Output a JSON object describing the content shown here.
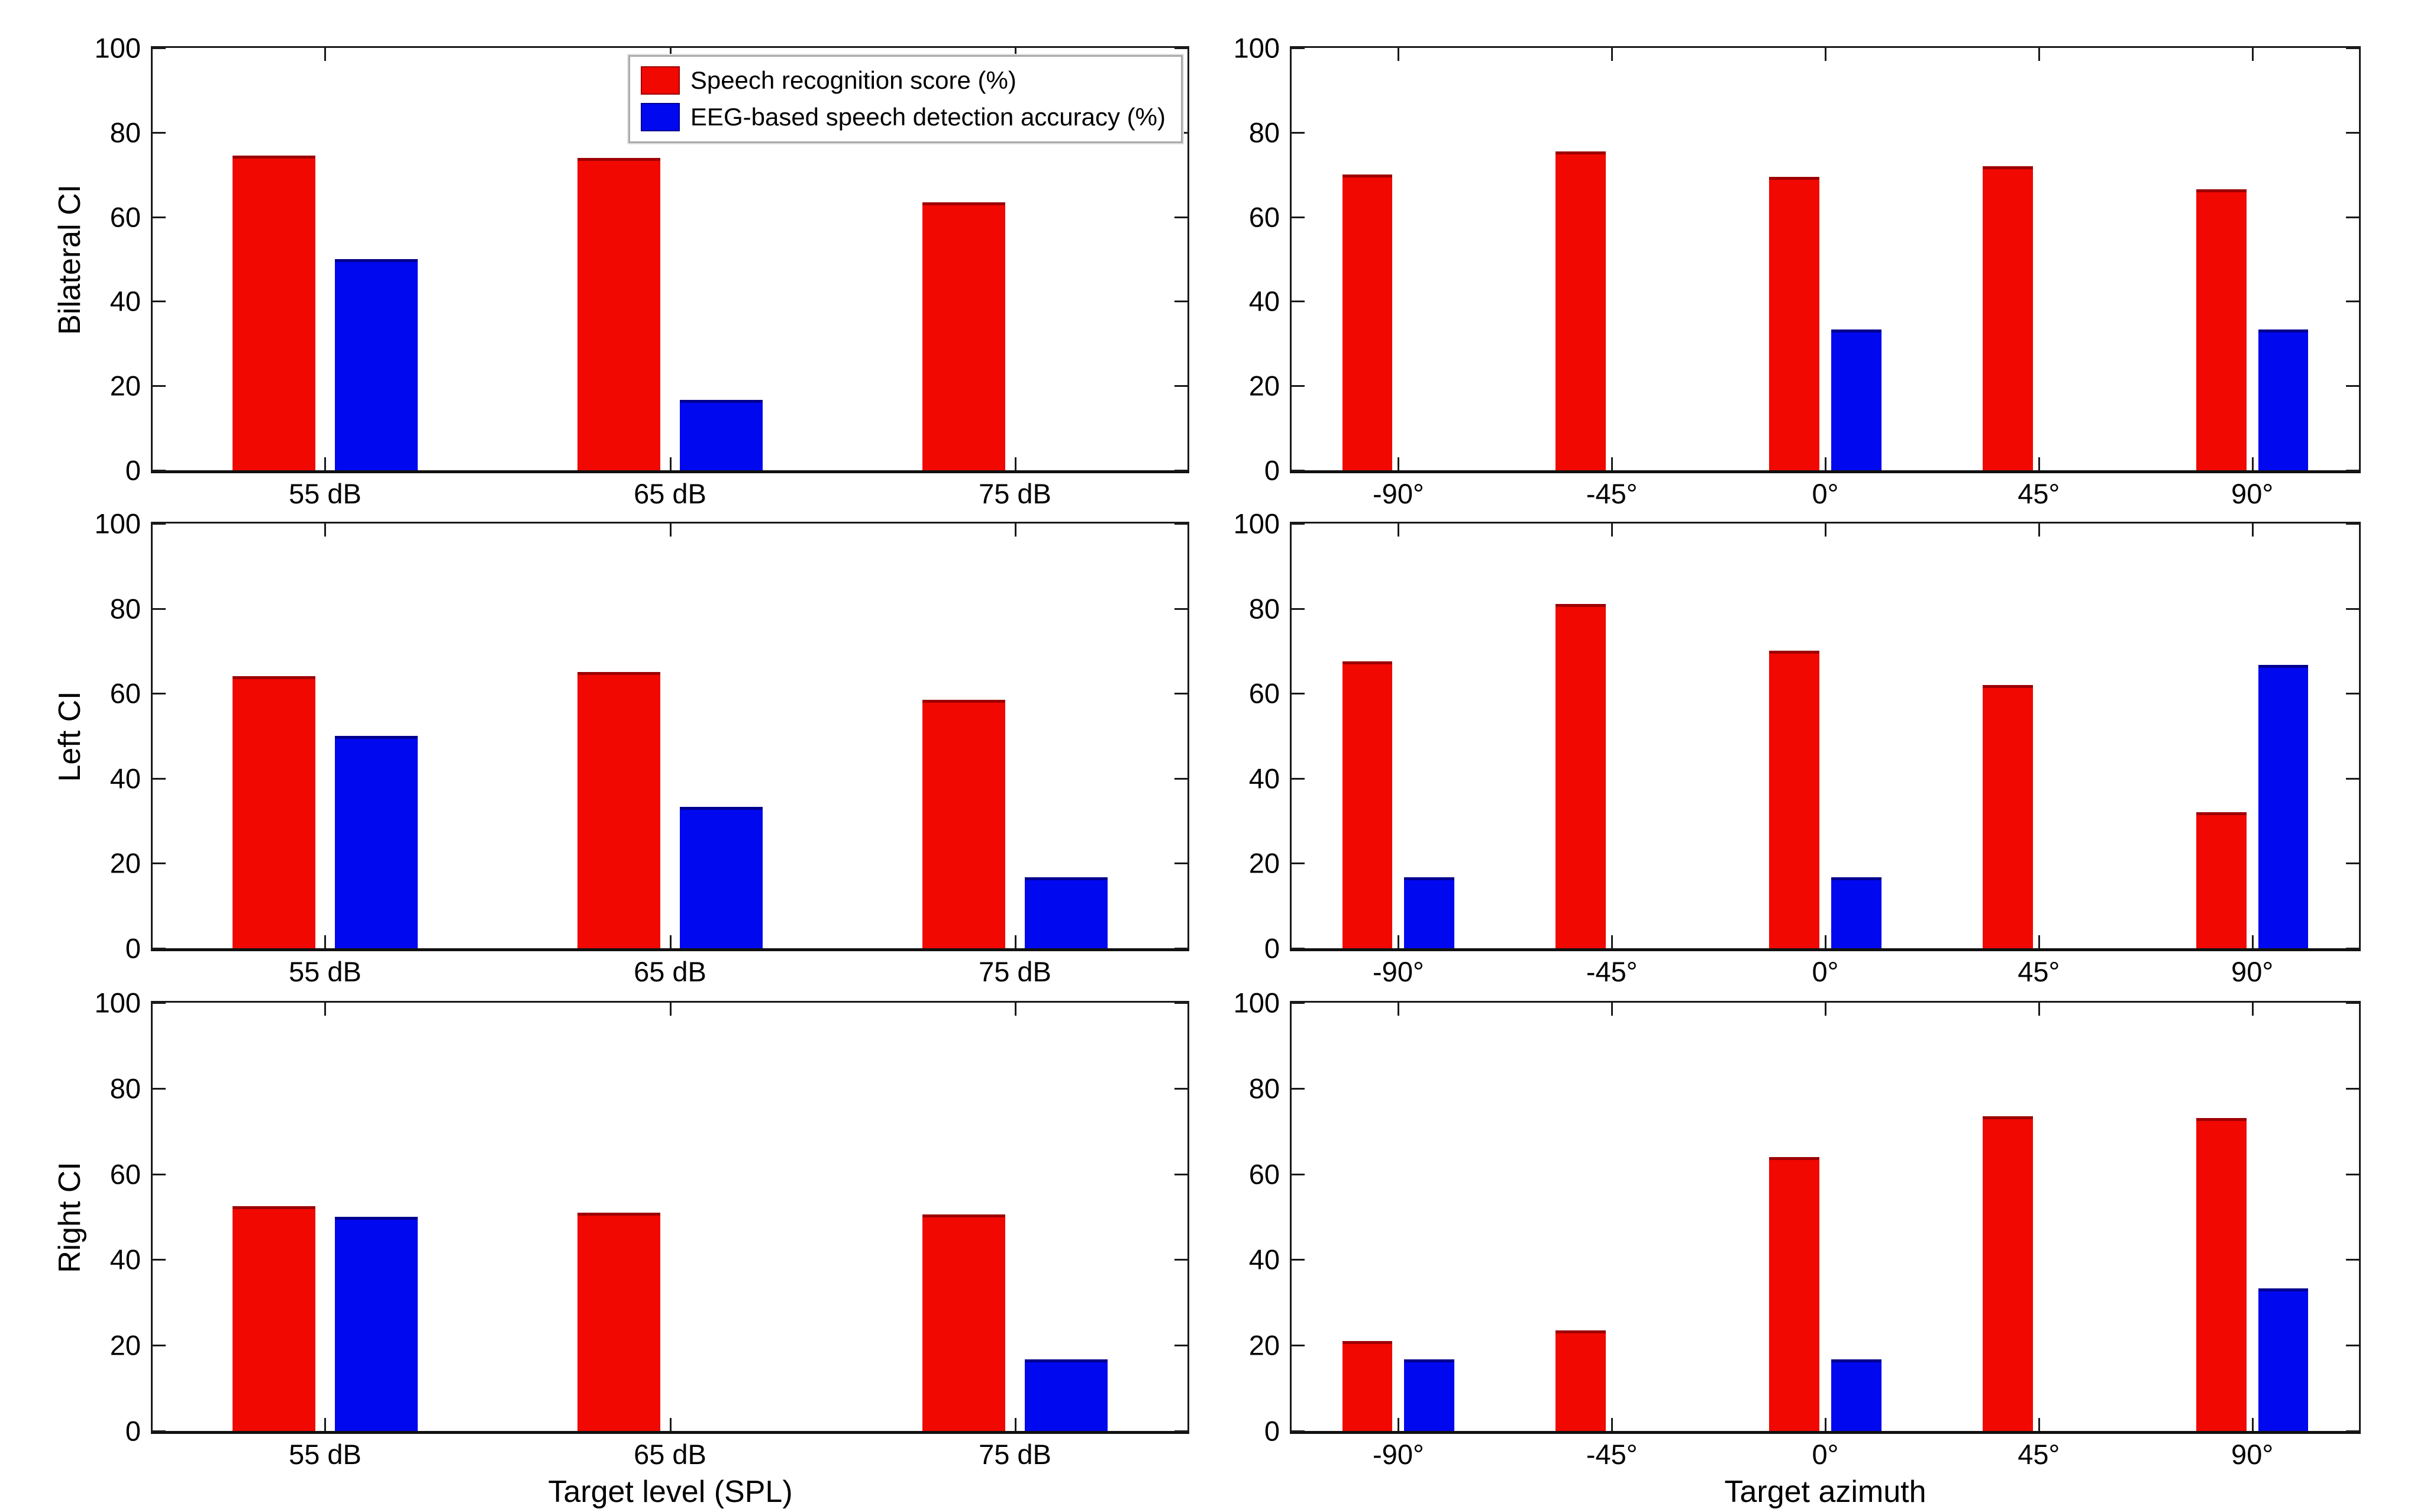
{
  "figure": {
    "background": "#ffffff",
    "axis_color": "#1a1a1a",
    "series_colors": {
      "speech": "#f10800",
      "eeg": "#0008f0"
    },
    "series_edge_colors": {
      "speech": "#9e0000",
      "eeg": "#000090"
    }
  },
  "legend": {
    "items": [
      {
        "label": "Speech recognition score (%)",
        "color": "#f10800",
        "edge": "#9e0000"
      },
      {
        "label": "EEG-based speech detection accuracy (%)",
        "color": "#0008f0",
        "edge": "#000090"
      }
    ]
  },
  "chart_data": [
    {
      "type": "bar",
      "row_label": "Bilateral CI",
      "xlabel": "",
      "categories": [
        "55 dB",
        "65 dB",
        "75 dB"
      ],
      "series": [
        {
          "name": "Speech recognition score (%)",
          "color": "#f10800",
          "edge": "#9e0000",
          "values": [
            74.5,
            74,
            63.5
          ]
        },
        {
          "name": "EEG-based speech detection accuracy (%)",
          "color": "#0008f0",
          "edge": "#000090",
          "values": [
            50,
            16.7,
            0
          ]
        }
      ],
      "ylim": [
        0,
        100
      ],
      "yticks": [
        0,
        20,
        40,
        60,
        80,
        100
      ],
      "grid": false,
      "legend_position": "upper-right"
    },
    {
      "type": "bar",
      "row_label": "",
      "xlabel": "",
      "categories": [
        "-90°",
        "-45°",
        "0°",
        "45°",
        "90°"
      ],
      "series": [
        {
          "name": "Speech recognition score (%)",
          "color": "#f10800",
          "edge": "#9e0000",
          "values": [
            70,
            75.5,
            69.5,
            72,
            66.5
          ]
        },
        {
          "name": "EEG-based speech detection accuracy (%)",
          "color": "#0008f0",
          "edge": "#000090",
          "values": [
            0,
            0,
            33.3,
            0,
            33.3
          ]
        }
      ],
      "ylim": [
        0,
        100
      ],
      "yticks": [
        0,
        20,
        40,
        60,
        80,
        100
      ],
      "grid": false
    },
    {
      "type": "bar",
      "row_label": "Left CI",
      "xlabel": "",
      "categories": [
        "55 dB",
        "65 dB",
        "75 dB"
      ],
      "series": [
        {
          "name": "Speech recognition score (%)",
          "color": "#f10800",
          "edge": "#9e0000",
          "values": [
            64,
            65,
            58.5
          ]
        },
        {
          "name": "EEG-based speech detection accuracy (%)",
          "color": "#0008f0",
          "edge": "#000090",
          "values": [
            50,
            33.3,
            16.7
          ]
        }
      ],
      "ylim": [
        0,
        100
      ],
      "yticks": [
        0,
        20,
        40,
        60,
        80,
        100
      ],
      "grid": false
    },
    {
      "type": "bar",
      "row_label": "",
      "xlabel": "",
      "categories": [
        "-90°",
        "-45°",
        "0°",
        "45°",
        "90°"
      ],
      "series": [
        {
          "name": "Speech recognition score (%)",
          "color": "#f10800",
          "edge": "#9e0000",
          "values": [
            67.5,
            81,
            70,
            62,
            32
          ]
        },
        {
          "name": "EEG-based speech detection accuracy (%)",
          "color": "#0008f0",
          "edge": "#000090",
          "values": [
            16.7,
            0,
            16.7,
            0,
            66.7
          ]
        }
      ],
      "ylim": [
        0,
        100
      ],
      "yticks": [
        0,
        20,
        40,
        60,
        80,
        100
      ],
      "grid": false
    },
    {
      "type": "bar",
      "row_label": "Right CI",
      "xlabel": "Target level (SPL)",
      "categories": [
        "55 dB",
        "65 dB",
        "75 dB"
      ],
      "series": [
        {
          "name": "Speech recognition score (%)",
          "color": "#f10800",
          "edge": "#9e0000",
          "values": [
            52.5,
            51,
            50.5
          ]
        },
        {
          "name": "EEG-based speech detection accuracy (%)",
          "color": "#0008f0",
          "edge": "#000090",
          "values": [
            50,
            0,
            16.7
          ]
        }
      ],
      "ylim": [
        0,
        100
      ],
      "yticks": [
        0,
        20,
        40,
        60,
        80,
        100
      ],
      "grid": false
    },
    {
      "type": "bar",
      "row_label": "",
      "xlabel": "Target azimuth",
      "categories": [
        "-90°",
        "-45°",
        "0°",
        "45°",
        "90°"
      ],
      "series": [
        {
          "name": "Speech recognition score (%)",
          "color": "#f10800",
          "edge": "#9e0000",
          "values": [
            21,
            23.5,
            64,
            73.5,
            73
          ]
        },
        {
          "name": "EEG-based speech detection accuracy (%)",
          "color": "#0008f0",
          "edge": "#000090",
          "values": [
            16.7,
            0,
            16.7,
            0,
            33.3
          ]
        }
      ],
      "ylim": [
        0,
        100
      ],
      "yticks": [
        0,
        20,
        40,
        60,
        80,
        100
      ],
      "grid": false
    }
  ]
}
